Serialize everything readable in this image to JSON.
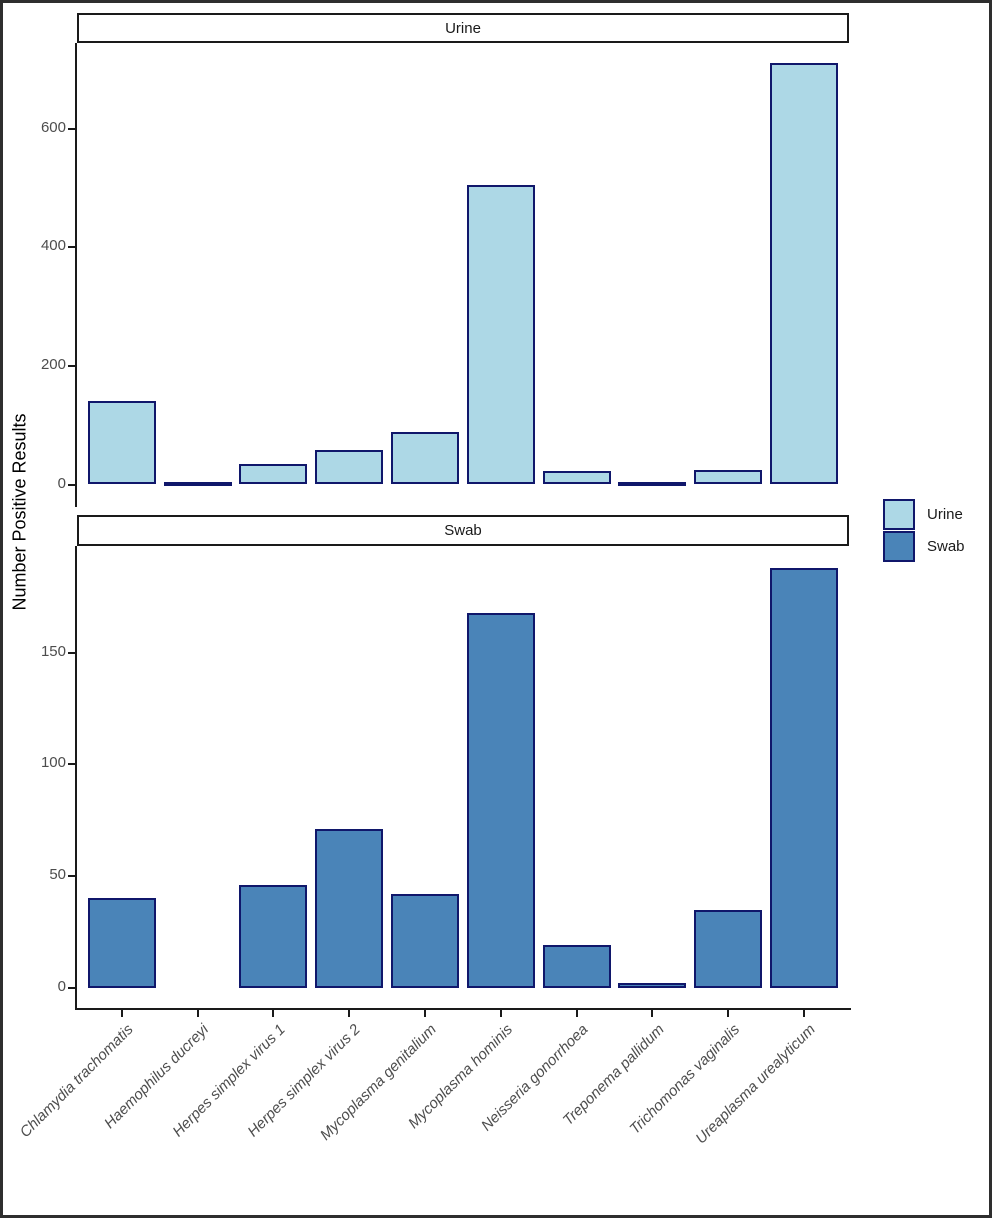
{
  "chart_data": {
    "type": "bar",
    "title": "",
    "ylabel": "Number Positive Results",
    "categories": [
      "Chlamydia trachomatis",
      "Haemophilus ducreyi",
      "Herpes simplex virus 1",
      "Herpes simplex virus 2",
      "Mycoplasma genitalium",
      "Mycoplasma hominis",
      "Neisseria gonorrhoea",
      "Treponema pallidum",
      "Trichomonas vaginalis",
      "Ureaplasma urealyticum"
    ],
    "facets": [
      {
        "label": "Urine",
        "yticks": [
          0,
          200,
          400,
          600
        ],
        "ylim": [
          0,
          745
        ]
      },
      {
        "label": "Swab",
        "yticks": [
          0,
          50,
          100,
          150
        ],
        "ylim": [
          0,
          198
        ]
      }
    ],
    "series": [
      {
        "name": "Urine",
        "fill": "#add8e6",
        "values": [
          140,
          2,
          34,
          58,
          89,
          505,
          22,
          2,
          24,
          710
        ]
      },
      {
        "name": "Swab",
        "fill": "#4a84b8",
        "values": [
          40,
          0,
          46,
          71,
          42,
          168,
          19,
          2,
          35,
          188
        ]
      }
    ],
    "legend": {
      "position": "right",
      "items": [
        "Urine",
        "Swab"
      ]
    },
    "grid": false,
    "bar_stroke": "#10176b",
    "axis_color": "#1a1a1a",
    "tick_label_color": "#4d4d4d"
  }
}
